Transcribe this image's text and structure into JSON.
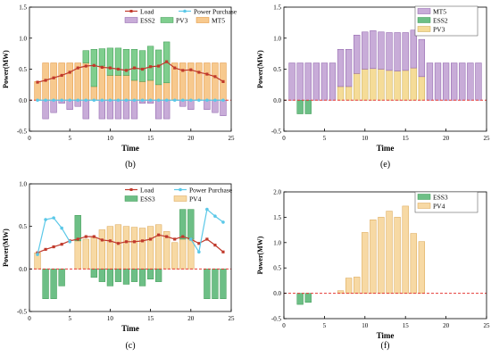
{
  "chart_data": [
    {
      "panel": "(b)",
      "type": "bar",
      "xlabel": "Time",
      "ylabel": "Power(MW)",
      "xlim": [
        0,
        25
      ],
      "ylim": [
        -0.5,
        1.5
      ],
      "xticks": [
        "0",
        "5",
        "10",
        "15",
        "20",
        "25"
      ],
      "yticks": [
        "-0.5",
        "0.0",
        "0.5",
        "1.0",
        "1.5"
      ],
      "x": [
        1,
        2,
        3,
        4,
        5,
        6,
        7,
        8,
        9,
        10,
        11,
        12,
        13,
        14,
        15,
        16,
        17,
        18,
        19,
        20,
        21,
        22,
        23,
        24
      ],
      "legend": [
        "Load",
        "Power Purchase",
        "ESS2",
        "PV3",
        "MT5"
      ],
      "bar_series": [
        {
          "name": "MT5",
          "color": "#f7c98e",
          "edge": "#e08b2a",
          "values": [
            0.3,
            0.6,
            0.6,
            0.6,
            0.6,
            0.6,
            0.6,
            0.22,
            0.55,
            0.4,
            0.4,
            0.4,
            0.32,
            0.3,
            0.32,
            0.25,
            0.28,
            0.6,
            0.6,
            0.6,
            0.6,
            0.6,
            0.6,
            0.6
          ]
        },
        {
          "name": "PV3",
          "color": "#7fce8e",
          "edge": "#3c9a52",
          "values": [
            0,
            0,
            0,
            0,
            0,
            0,
            0.2,
            0.6,
            0.28,
            0.44,
            0.44,
            0.42,
            0.5,
            0.5,
            0.55,
            0.56,
            0.66,
            0,
            0,
            0,
            0,
            0,
            0,
            0
          ]
        },
        {
          "name": "ESS2",
          "color": "#c8acd8",
          "edge": "#8a5ca8",
          "values": [
            0,
            -0.3,
            -0.2,
            -0.05,
            -0.15,
            -0.1,
            -0.3,
            0,
            -0.3,
            -0.3,
            -0.3,
            -0.3,
            -0.3,
            -0.05,
            -0.05,
            -0.3,
            -0.3,
            0,
            -0.1,
            -0.15,
            0,
            -0.15,
            -0.2,
            -0.25
          ]
        }
      ],
      "line_series": [
        {
          "name": "Load",
          "color": "#c0392b",
          "values": [
            0.29,
            0.32,
            0.36,
            0.4,
            0.45,
            0.52,
            0.55,
            0.56,
            0.53,
            0.52,
            0.5,
            0.48,
            0.52,
            0.5,
            0.54,
            0.55,
            0.62,
            0.52,
            0.48,
            0.49,
            0.45,
            0.42,
            0.38,
            0.3
          ]
        },
        {
          "name": "Power Purchase",
          "color": "#5bc8e8",
          "values": [
            0,
            0,
            0,
            0,
            0,
            0,
            0,
            0,
            0,
            0,
            0,
            0,
            0,
            0,
            0,
            0,
            0,
            0,
            0,
            0,
            0,
            0,
            0,
            0
          ]
        }
      ]
    },
    {
      "panel": "(e)",
      "type": "bar",
      "xlabel": "Time",
      "ylabel": "Power(MW)",
      "xlim": [
        0,
        25
      ],
      "ylim": [
        -0.5,
        1.5
      ],
      "xticks": [
        "0",
        "5",
        "10",
        "15",
        "20",
        "25"
      ],
      "yticks": [
        "-0.5",
        "0.0",
        "0.5",
        "1.0",
        "1.5"
      ],
      "x": [
        1,
        2,
        3,
        4,
        5,
        6,
        7,
        8,
        9,
        10,
        11,
        12,
        13,
        14,
        15,
        16,
        17,
        18,
        19,
        20,
        21,
        22,
        23,
        24
      ],
      "legend": [
        "MT5",
        "ESS2",
        "PV3"
      ],
      "bar_series": [
        {
          "name": "PV3",
          "color": "#f5dc98",
          "edge": "#c9a84e",
          "values": [
            0,
            0,
            0,
            0,
            0,
            0,
            0.22,
            0.22,
            0.43,
            0.5,
            0.51,
            0.5,
            0.48,
            0.47,
            0.48,
            0.52,
            0.38,
            0,
            0,
            0,
            0,
            0,
            0,
            0
          ]
        },
        {
          "name": "MT5",
          "color": "#c8acd8",
          "edge": "#8a5ca8",
          "values": [
            0.6,
            0.6,
            0.6,
            0.6,
            0.6,
            0.6,
            0.6,
            0.6,
            0.62,
            0.6,
            0.61,
            0.6,
            0.61,
            0.62,
            0.61,
            0.61,
            0.6,
            0.6,
            0.6,
            0.6,
            0.6,
            0.6,
            0.6,
            0.6
          ]
        },
        {
          "name": "ESS2",
          "color": "#6dbf86",
          "edge": "#3c9a52",
          "values": [
            0,
            -0.22,
            -0.22,
            0,
            0,
            0,
            0,
            0,
            0,
            0,
            0,
            0,
            0,
            0,
            0,
            0,
            0,
            0,
            0,
            0,
            0,
            0,
            0,
            0
          ]
        }
      ],
      "line_series": []
    },
    {
      "panel": "(c)",
      "type": "bar",
      "xlabel": "Time",
      "ylabel": "Power(MW)",
      "xlim": [
        0,
        25
      ],
      "ylim": [
        -0.5,
        1.0
      ],
      "xticks": [
        "0",
        "5",
        "10",
        "15",
        "20",
        "25"
      ],
      "yticks": [
        "-0.5",
        "0.0",
        "0.5",
        "1.0"
      ],
      "x": [
        1,
        2,
        3,
        4,
        5,
        6,
        7,
        8,
        9,
        10,
        11,
        12,
        13,
        14,
        15,
        16,
        17,
        18,
        19,
        20,
        21,
        22,
        23,
        24
      ],
      "legend": [
        "Load",
        "Power Purchase",
        "ESS3",
        "PV4"
      ],
      "bar_series": [
        {
          "name": "PV4",
          "color": "#f7d9a4",
          "edge": "#d9a24e",
          "values": [
            0.19,
            0,
            0,
            0,
            0,
            0.33,
            0.35,
            0.37,
            0.46,
            0.5,
            0.52,
            0.5,
            0.49,
            0.48,
            0.5,
            0.52,
            0.44,
            0.31,
            0.35,
            0.35,
            0,
            0,
            0,
            0
          ]
        },
        {
          "name": "ESS3",
          "color": "#6dbf86",
          "edge": "#3c9a52",
          "values": [
            0,
            -0.35,
            -0.35,
            -0.2,
            0,
            0.3,
            0,
            -0.1,
            -0.15,
            -0.2,
            -0.15,
            -0.18,
            -0.15,
            -0.2,
            -0.12,
            -0.15,
            0,
            0,
            0.35,
            0.35,
            0,
            -0.35,
            -0.35,
            -0.35
          ]
        }
      ],
      "line_series": [
        {
          "name": "Load",
          "color": "#c0392b",
          "values": [
            0.19,
            0.23,
            0.26,
            0.29,
            0.33,
            0.35,
            0.38,
            0.38,
            0.34,
            0.33,
            0.3,
            0.32,
            0.32,
            0.33,
            0.35,
            0.4,
            0.38,
            0.35,
            0.38,
            0.35,
            0.3,
            0.35,
            0.28,
            0.2
          ]
        },
        {
          "name": "Power Purchase",
          "color": "#5bc8e8",
          "values": [
            0.17,
            0.58,
            0.6,
            0.48,
            0.32,
            null,
            null,
            null,
            null,
            null,
            null,
            null,
            null,
            null,
            null,
            null,
            null,
            null,
            null,
            0.35,
            0.2,
            0.7,
            0.62,
            0.55
          ]
        }
      ]
    },
    {
      "panel": "(f)",
      "type": "bar",
      "xlabel": "Time",
      "ylabel": "Power(MW)",
      "xlim": [
        0,
        25
      ],
      "ylim": [
        -0.5,
        2.0
      ],
      "xticks": [
        "0",
        "5",
        "10",
        "15",
        "20",
        "25"
      ],
      "yticks": [
        "-0.5",
        "0.0",
        "0.5",
        "1.0",
        "1.5",
        "2.0"
      ],
      "x": [
        1,
        2,
        3,
        4,
        5,
        6,
        7,
        8,
        9,
        10,
        11,
        12,
        13,
        14,
        15,
        16,
        17,
        18,
        19,
        20,
        21,
        22,
        23,
        24
      ],
      "legend": [
        "ESS3",
        "PV4"
      ],
      "bar_series": [
        {
          "name": "PV4",
          "color": "#f7d9a4",
          "edge": "#d9a24e",
          "values": [
            0,
            0,
            0,
            0,
            0,
            0,
            0.05,
            0.3,
            0.32,
            1.2,
            1.45,
            1.5,
            1.62,
            1.5,
            1.72,
            1.18,
            1.02,
            0,
            0,
            0,
            0,
            0,
            0,
            0
          ]
        },
        {
          "name": "ESS3",
          "color": "#6dbf86",
          "edge": "#3c9a52",
          "values": [
            0,
            -0.22,
            -0.18,
            0,
            0,
            0,
            0,
            0,
            0,
            0,
            0,
            0,
            0,
            0,
            0,
            0,
            0,
            0,
            0,
            0,
            0,
            0,
            0,
            0
          ]
        }
      ],
      "line_series": []
    }
  ]
}
